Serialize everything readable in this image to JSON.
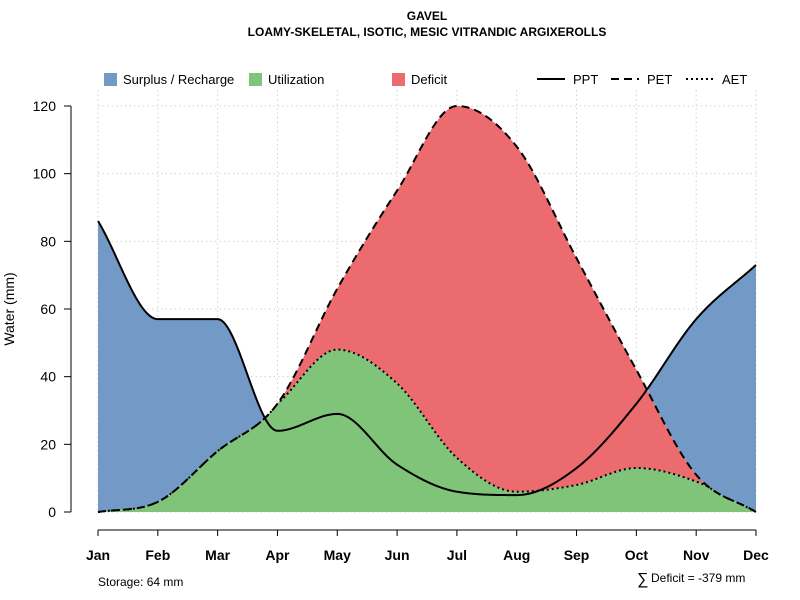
{
  "chart_data": {
    "type": "area",
    "title": "GAVEL",
    "subtitle": "LOAMY-SKELETAL, ISOTIC, MESIC VITRANDIC ARGIXEROLLS",
    "ylabel": "Water (mm)",
    "xlabel": "",
    "ylim": [
      0,
      120
    ],
    "yticks": [
      0,
      20,
      40,
      60,
      80,
      100,
      120
    ],
    "categories": [
      "Jan",
      "Feb",
      "Mar",
      "Apr",
      "May",
      "Jun",
      "Jul",
      "Aug",
      "Sep",
      "Oct",
      "Nov",
      "Dec"
    ],
    "grid": true,
    "series": [
      {
        "name": "PPT",
        "style": "solid",
        "values": [
          86,
          57,
          57,
          24,
          29,
          14,
          6,
          5,
          13,
          32,
          57,
          73
        ]
      },
      {
        "name": "PET",
        "style": "dashed",
        "values": [
          0,
          3,
          18,
          32,
          66,
          95,
          120,
          108,
          75,
          42,
          11,
          0
        ]
      },
      {
        "name": "AET",
        "style": "dotted",
        "values": [
          0,
          3,
          18,
          32,
          48,
          38,
          16,
          6,
          8,
          13,
          9,
          0
        ]
      }
    ],
    "legend": [
      {
        "label": "Surplus / Recharge",
        "kind": "fill",
        "color": "#7399c6"
      },
      {
        "label": "Utilization",
        "kind": "fill",
        "color": "#80c47a"
      },
      {
        "label": "Deficit",
        "kind": "fill",
        "color": "#ec6b6e"
      },
      {
        "label": "PPT",
        "kind": "line",
        "dash": "solid"
      },
      {
        "label": "PET",
        "kind": "line",
        "dash": "dashed"
      },
      {
        "label": "AET",
        "kind": "line",
        "dash": "dotted"
      }
    ],
    "legend_position": "top",
    "colors": {
      "surplus": "#7399c6",
      "utilization": "#80c47a",
      "deficit": "#ec6b6e",
      "grid": "#d3d3d3"
    },
    "annotations": {
      "storage": "Storage: 64 mm",
      "deficit_symbol": "∑",
      "deficit": "Deficit = -379 mm"
    }
  }
}
